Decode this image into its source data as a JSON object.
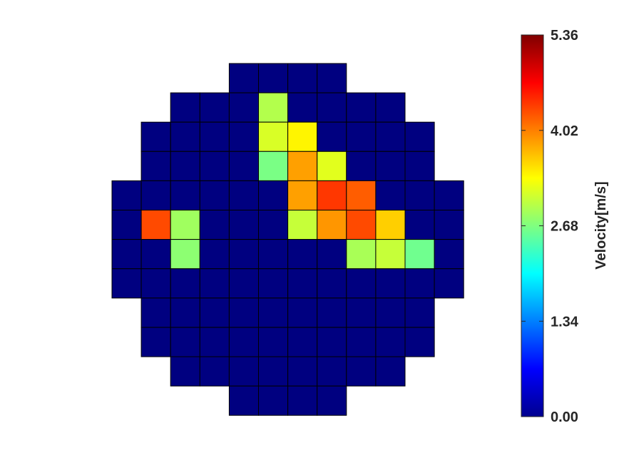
{
  "chart_data": {
    "type": "heatmap",
    "title": "",
    "xlabel": "",
    "ylabel": "",
    "colormap": "jet",
    "grid": {
      "rows": 12,
      "cols": 12
    },
    "value_range": [
      0,
      5.36
    ],
    "rows": [
      [
        null,
        null,
        null,
        null,
        0,
        0,
        0,
        0,
        null,
        null,
        null,
        null
      ],
      [
        null,
        null,
        0,
        0,
        0,
        2.95,
        0,
        0,
        0,
        0,
        null,
        null
      ],
      [
        null,
        0,
        0,
        0,
        0,
        3.15,
        3.4,
        0,
        0,
        0,
        0,
        null
      ],
      [
        null,
        0,
        0,
        0,
        0,
        2.65,
        3.85,
        3.2,
        0,
        0,
        0,
        null
      ],
      [
        0,
        0,
        0,
        0,
        0,
        0,
        3.85,
        4.4,
        4.2,
        0,
        0,
        0
      ],
      [
        0,
        4.3,
        2.85,
        0,
        0,
        0,
        3.05,
        3.9,
        4.3,
        3.6,
        0,
        0
      ],
      [
        0,
        0,
        2.75,
        0,
        0,
        0,
        0,
        0,
        2.9,
        3.05,
        2.6,
        0
      ],
      [
        0,
        0,
        0,
        0,
        0,
        0,
        0,
        0,
        0,
        0,
        0,
        0
      ],
      [
        null,
        0,
        0,
        0,
        0,
        0,
        0,
        0,
        0,
        0,
        0,
        null
      ],
      [
        null,
        0,
        0,
        0,
        0,
        0,
        0,
        0,
        0,
        0,
        0,
        null
      ],
      [
        null,
        null,
        0,
        0,
        0,
        0,
        0,
        0,
        0,
        0,
        null,
        null
      ],
      [
        null,
        null,
        null,
        null,
        0,
        0,
        0,
        0,
        null,
        null,
        null,
        null
      ]
    ],
    "colorbar": {
      "label": "Velocity[m/s]",
      "ticks": [
        "0.00",
        "1.34",
        "2.68",
        "4.02",
        "5.36"
      ],
      "tick_values": [
        0,
        1.34,
        2.68,
        4.02,
        5.36
      ]
    }
  }
}
